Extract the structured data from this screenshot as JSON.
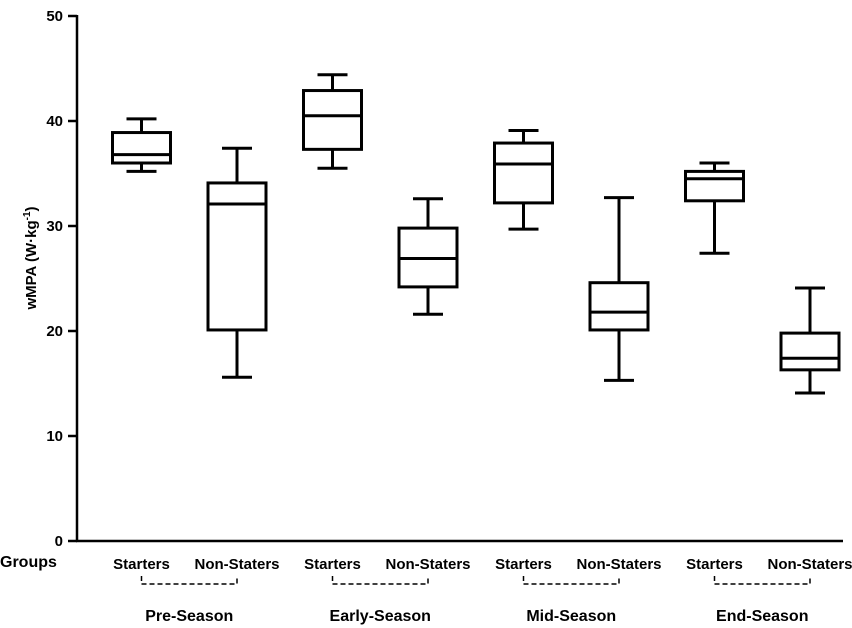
{
  "chart_data": {
    "type": "boxplot",
    "ylabel_main": "wMPA (W·kg",
    "ylabel_sup": "-1",
    "ylabel_close": ")",
    "ylim": [
      0,
      50
    ],
    "yticks": [
      0,
      10,
      20,
      30,
      40,
      50
    ],
    "groups_label": "Groups",
    "phases": [
      "Pre-Season",
      "Early-Season",
      "Mid-Season",
      "End-Season"
    ],
    "boxes": [
      {
        "phase": "Pre-Season",
        "group": "Starters",
        "min": 35.2,
        "q1": 36.0,
        "median": 36.8,
        "q3": 38.9,
        "max": 40.2
      },
      {
        "phase": "Pre-Season",
        "group": "Non-Staters",
        "min": 15.6,
        "q1": 20.1,
        "median": 32.1,
        "q3": 34.1,
        "max": 37.4
      },
      {
        "phase": "Early-Season",
        "group": "Starters",
        "min": 35.5,
        "q1": 37.3,
        "median": 40.5,
        "q3": 42.9,
        "max": 44.4
      },
      {
        "phase": "Early-Season",
        "group": "Non-Staters",
        "min": 21.6,
        "q1": 24.2,
        "median": 26.9,
        "q3": 29.8,
        "max": 32.6
      },
      {
        "phase": "Mid-Season",
        "group": "Starters",
        "min": 29.7,
        "q1": 32.2,
        "median": 35.9,
        "q3": 37.9,
        "max": 39.1
      },
      {
        "phase": "Mid-Season",
        "group": "Non-Staters",
        "min": 15.3,
        "q1": 20.1,
        "median": 21.8,
        "q3": 24.6,
        "max": 32.7
      },
      {
        "phase": "End-Season",
        "group": "Starters",
        "min": 27.4,
        "q1": 32.4,
        "median": 34.5,
        "q3": 35.2,
        "max": 36.0
      },
      {
        "phase": "End-Season",
        "group": "Non-Staters",
        "min": 14.1,
        "q1": 16.3,
        "median": 17.4,
        "q3": 19.8,
        "max": 24.1
      }
    ]
  }
}
